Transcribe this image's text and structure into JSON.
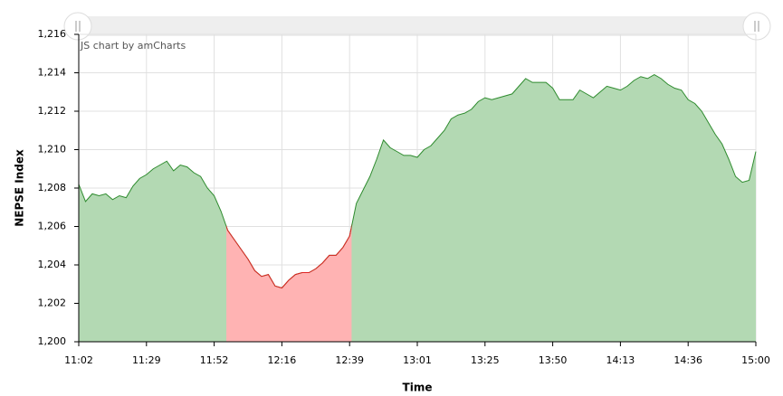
{
  "chart_data": {
    "type": "area",
    "credit": "JS chart by amCharts",
    "x_label": "Time",
    "y_label": "NEPSE Index",
    "categories": [
      "11:02",
      null,
      null,
      null,
      null,
      null,
      null,
      null,
      null,
      null,
      "11:29",
      null,
      null,
      null,
      null,
      null,
      null,
      null,
      null,
      null,
      "11:52",
      null,
      null,
      null,
      null,
      null,
      null,
      null,
      null,
      null,
      "12:16",
      null,
      null,
      null,
      null,
      null,
      null,
      null,
      null,
      null,
      "12:39",
      null,
      null,
      null,
      null,
      null,
      null,
      null,
      null,
      null,
      "13:01",
      null,
      null,
      null,
      null,
      null,
      null,
      null,
      null,
      null,
      "13:25",
      null,
      null,
      null,
      null,
      null,
      null,
      null,
      null,
      null,
      "13:50",
      null,
      null,
      null,
      null,
      null,
      null,
      null,
      null,
      null,
      "14:13",
      null,
      null,
      null,
      null,
      null,
      null,
      null,
      null,
      null,
      "14:36",
      null,
      null,
      null,
      null,
      null,
      null,
      null,
      null,
      null,
      "15:00"
    ],
    "values": [
      1208.2,
      1207.3,
      1207.7,
      1207.6,
      1207.7,
      1207.4,
      1207.6,
      1207.5,
      1208.1,
      1208.5,
      1208.7,
      1209.0,
      1209.2,
      1209.4,
      1208.9,
      1209.2,
      1209.1,
      1208.8,
      1208.6,
      1208.0,
      1207.6,
      1206.8,
      1205.8,
      1205.3,
      1204.8,
      1204.3,
      1203.7,
      1203.4,
      1203.5,
      1202.9,
      1202.8,
      1203.2,
      1203.5,
      1203.6,
      1203.6,
      1203.8,
      1204.1,
      1204.5,
      1204.5,
      1204.9,
      1205.5,
      1207.2,
      1207.9,
      1208.6,
      1209.5,
      1210.5,
      1210.1,
      1209.9,
      1209.7,
      1209.7,
      1209.6,
      1210.0,
      1210.2,
      1210.6,
      1211.0,
      1211.6,
      1211.8,
      1211.9,
      1212.1,
      1212.5,
      1212.7,
      1212.6,
      1212.7,
      1212.8,
      1212.9,
      1213.3,
      1213.7,
      1213.5,
      1213.5,
      1213.5,
      1213.2,
      1212.6,
      1212.6,
      1212.6,
      1213.1,
      1212.9,
      1212.7,
      1213.0,
      1213.3,
      1213.2,
      1213.1,
      1213.3,
      1213.6,
      1213.8,
      1213.7,
      1213.9,
      1213.7,
      1213.4,
      1213.2,
      1213.1,
      1212.6,
      1212.4,
      1212.0,
      1211.4,
      1210.8,
      1210.3,
      1209.5,
      1208.6,
      1208.3,
      1208.4,
      1209.9
    ],
    "color": "#2e8b2e",
    "fill_color": "#b3d9b3",
    "negative_base": 1206,
    "negative_color": "#e02424",
    "negative_fill_color": "#ffb3b3",
    "ylim": [
      1200,
      1216
    ],
    "yticks": [
      {
        "value": 1200,
        "label": "1,200"
      },
      {
        "value": 1202,
        "label": "1,202"
      },
      {
        "value": 1204,
        "label": "1,204"
      },
      {
        "value": 1206,
        "label": "1,206"
      },
      {
        "value": 1208,
        "label": "1,208"
      },
      {
        "value": 1210,
        "label": "1,210"
      },
      {
        "value": 1212,
        "label": "1,212"
      },
      {
        "value": 1214,
        "label": "1,214"
      },
      {
        "value": 1216,
        "label": "1,216"
      }
    ],
    "grid": true
  }
}
